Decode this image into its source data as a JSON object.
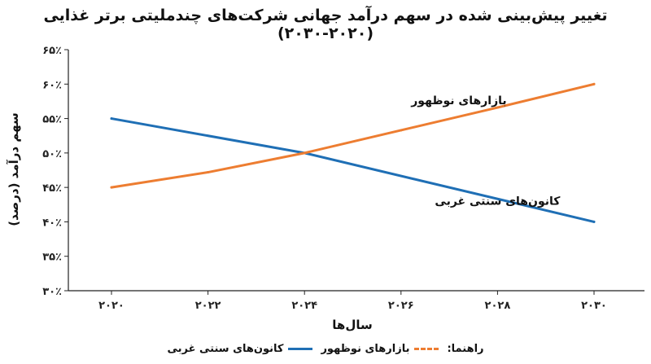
{
  "chart_data": {
    "type": "line",
    "title": "تغییر پیش‌بینی شده در سهم درآمد جهانی شرکت‌های چندملیتی برتر غذایی (۲۰۲۰-۲۰۳۰)",
    "xlabel": "سال‌ها",
    "ylabel": "سهم درآمد (درصد)",
    "x": [
      2020,
      2022,
      2024,
      2026,
      2028,
      2030
    ],
    "x_tick_labels": [
      "۲۰۲۰",
      "۲۰۲۲",
      "۲۰۲۴",
      "۲۰۲۶",
      "۲۰۲۸",
      "۲۰۳۰"
    ],
    "ylim": [
      30,
      65
    ],
    "y_ticks": [
      30,
      35,
      40,
      45,
      50,
      55,
      60,
      65
    ],
    "y_tick_labels": [
      "۳۰٪",
      "۳۵٪",
      "۴۰٪",
      "۴۵٪",
      "۵۰٪",
      "۵۵٪",
      "۶۰٪",
      "۶۵٪"
    ],
    "grid": false,
    "legend_position": "bottom",
    "legend_title": "راهنما:",
    "series": [
      {
        "name": "کانون‌های سنتی غربی",
        "color": "#1f6fb5",
        "x": [
          2020,
          2024,
          2030
        ],
        "values": [
          55,
          50,
          40
        ],
        "annotation": "کانون‌های سنتی غربی",
        "annotation_anchor": [
          2028,
          42.5
        ]
      },
      {
        "name": "بازارهای نوظهور",
        "color": "#ed7d31",
        "x": [
          2020,
          2022,
          2024,
          2026,
          2028,
          2030
        ],
        "values": [
          45,
          47.2,
          50,
          53.3,
          56.6,
          60
        ],
        "annotation": "بازارهای نوظهور",
        "annotation_anchor": [
          2027.2,
          57.1
        ]
      }
    ]
  }
}
